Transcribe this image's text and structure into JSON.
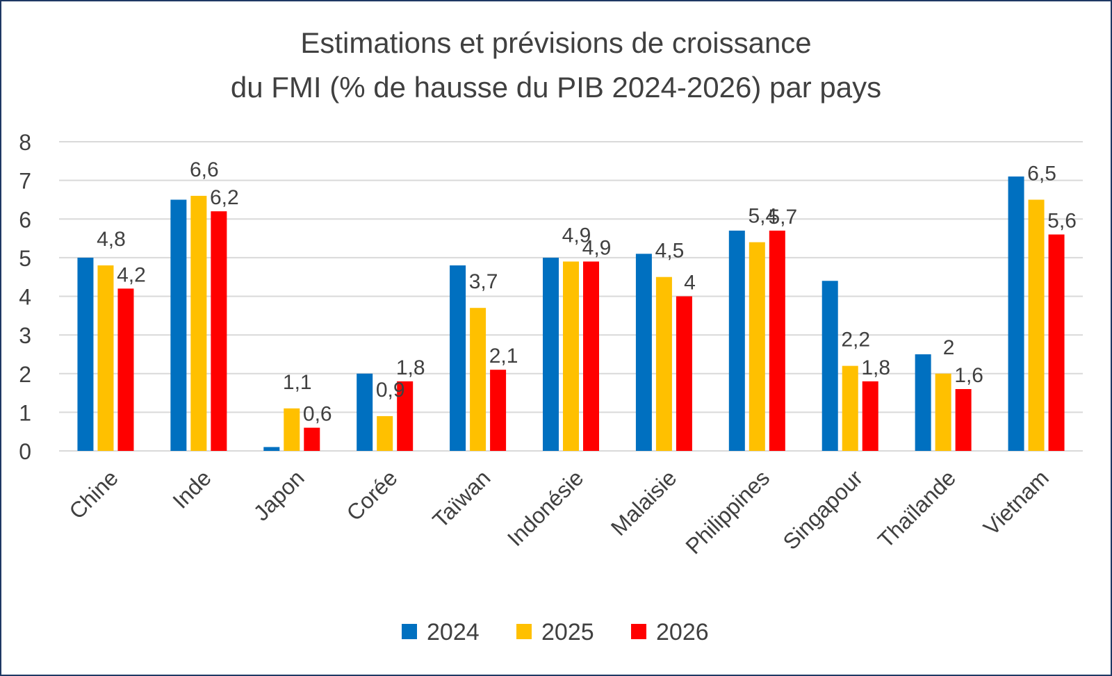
{
  "chart_data": {
    "type": "bar",
    "title": [
      "Estimations et prévisions de croissance",
      "du FMI (% de hausse du PIB 2024-2026) par pays"
    ],
    "xlabel": "",
    "ylabel": "",
    "ylim": [
      0,
      8
    ],
    "yticks": [
      "0",
      "1",
      "2",
      "3",
      "4",
      "5",
      "6",
      "7",
      "8"
    ],
    "grid": true,
    "legend_position": "bottom",
    "categories": [
      "Chine",
      "Inde",
      "Japon",
      "Corée",
      "Taïwan",
      "Indonésie",
      "Malaisie",
      "Philippines",
      "Singapour",
      "Thaïlande",
      "Vietnam"
    ],
    "series": [
      {
        "name": "2024",
        "color": "#0070c0",
        "values": [
          5.0,
          6.5,
          0.1,
          2.0,
          4.8,
          5.0,
          5.1,
          5.7,
          4.4,
          2.5,
          7.1
        ],
        "labels": [
          null,
          null,
          null,
          null,
          null,
          null,
          null,
          null,
          null,
          null,
          null
        ]
      },
      {
        "name": "2025",
        "color": "#ffc000",
        "values": [
          4.8,
          6.6,
          1.1,
          0.9,
          3.7,
          4.9,
          4.5,
          5.4,
          2.2,
          2.0,
          6.5
        ],
        "labels": [
          "4,8",
          "6,6",
          "1,1",
          "0,9",
          "3,7",
          "4,9",
          "4,5",
          "5,4",
          "2,2",
          "2",
          "6,5"
        ]
      },
      {
        "name": "2026",
        "color": "#ff0000",
        "values": [
          4.2,
          6.2,
          0.6,
          1.8,
          2.1,
          4.9,
          4.0,
          5.7,
          1.8,
          1.6,
          5.6
        ],
        "labels": [
          "4,2",
          "6,2",
          "0,6",
          "1,8",
          "2,1",
          "4,9",
          "4",
          "5,7",
          "1,8",
          "1,6",
          "5,6"
        ]
      }
    ]
  }
}
